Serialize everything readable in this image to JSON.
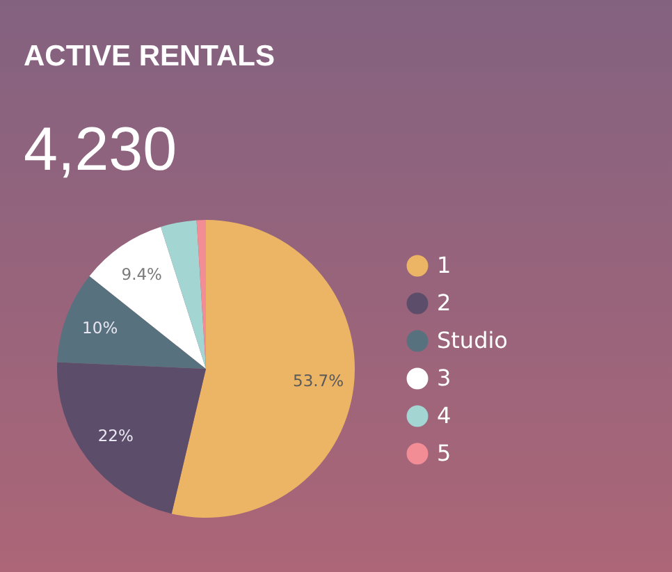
{
  "chart_data": {
    "type": "pie",
    "title": "ACTIVE RENTALS",
    "subtitle": "4,230",
    "categories": [
      "1",
      "2",
      "Studio",
      "3",
      "4",
      "5"
    ],
    "values": [
      53.7,
      22,
      10,
      9.4,
      3.9,
      1.0
    ],
    "colors": [
      "#ebb565",
      "#5c4e6b",
      "#58717e",
      "#ffffff",
      "#a3d5d3",
      "#f28d95"
    ],
    "value_labels": [
      "53.7%",
      "22%",
      "10%",
      "9.4%",
      null,
      null
    ],
    "legend": "right"
  }
}
